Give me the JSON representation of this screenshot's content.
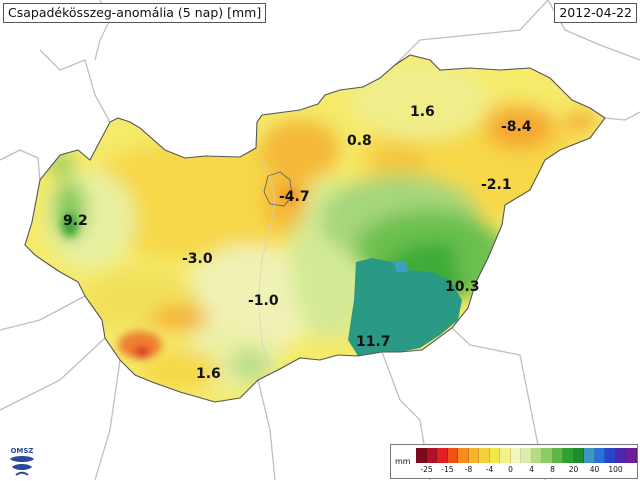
{
  "title": "Csapadékösszeg-anomália (5 nap) [mm]",
  "date": "2012-04-22",
  "logo": {
    "text": "OMSZ",
    "icon": "omsz-logo-icon"
  },
  "map_labels": [
    {
      "id": "nw",
      "text": "9.2"
    },
    {
      "id": "budapest",
      "text": "-4.7"
    },
    {
      "id": "north",
      "text": "0.8"
    },
    {
      "id": "ne-1",
      "text": "1.6"
    },
    {
      "id": "ne-2",
      "text": "-8.4"
    },
    {
      "id": "east",
      "text": "-2.1"
    },
    {
      "id": "transdanubia",
      "text": "-3.0"
    },
    {
      "id": "center",
      "text": "-1.0"
    },
    {
      "id": "se",
      "text": "10.3"
    },
    {
      "id": "south",
      "text": "11.7"
    },
    {
      "id": "sw",
      "text": "1.6"
    }
  ],
  "legend": {
    "unit": "mm",
    "colors": [
      "#7a0a1c",
      "#b0102a",
      "#e02020",
      "#f05014",
      "#f58c1e",
      "#f7b42a",
      "#f5d23c",
      "#f2e84c",
      "#f2f28a",
      "#f5f5c0",
      "#d9ecaa",
      "#b4dc86",
      "#8ccc64",
      "#5ab846",
      "#2ea030",
      "#1e8c2a",
      "#3c96c8",
      "#2c6ede",
      "#2a46c8",
      "#4a2aae",
      "#6c1e96"
    ],
    "ticks": [
      "-25",
      "-15",
      "-8",
      "-4",
      "0",
      "4",
      "8",
      "20",
      "40",
      "100"
    ]
  }
}
